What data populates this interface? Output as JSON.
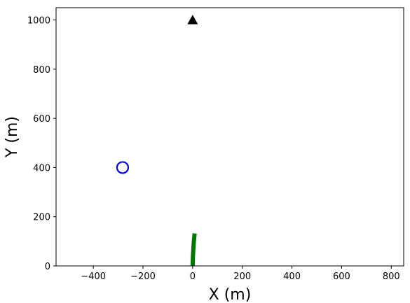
{
  "chart_data": {
    "type": "scatter",
    "xlabel": "X (m)",
    "ylabel": "Y (m)",
    "xlim": [
      -550,
      850
    ],
    "ylim": [
      0,
      1050
    ],
    "xticks": [
      -400,
      -200,
      0,
      200,
      400,
      600,
      800
    ],
    "yticks": [
      0,
      200,
      400,
      600,
      800,
      1000
    ],
    "xtick_labels": [
      "−400",
      "−200",
      "0",
      "200",
      "400",
      "600",
      "800"
    ],
    "ytick_labels": [
      "0",
      "200",
      "400",
      "600",
      "800",
      "1000"
    ],
    "grid": false,
    "series": [
      {
        "marker": "triangle",
        "color": "#000000",
        "points": [
          {
            "x": 0,
            "y": 1000
          }
        ]
      },
      {
        "marker": "open-circle",
        "color": "#0000ff",
        "points": [
          {
            "x": -282,
            "y": 400
          }
        ]
      },
      {
        "marker": "line",
        "color": "#007700",
        "points": [
          {
            "x": 0,
            "y": 0
          },
          {
            "x": 1,
            "y": 35
          },
          {
            "x": 3,
            "y": 70
          },
          {
            "x": 5,
            "y": 100
          },
          {
            "x": 8,
            "y": 132
          }
        ]
      }
    ]
  }
}
